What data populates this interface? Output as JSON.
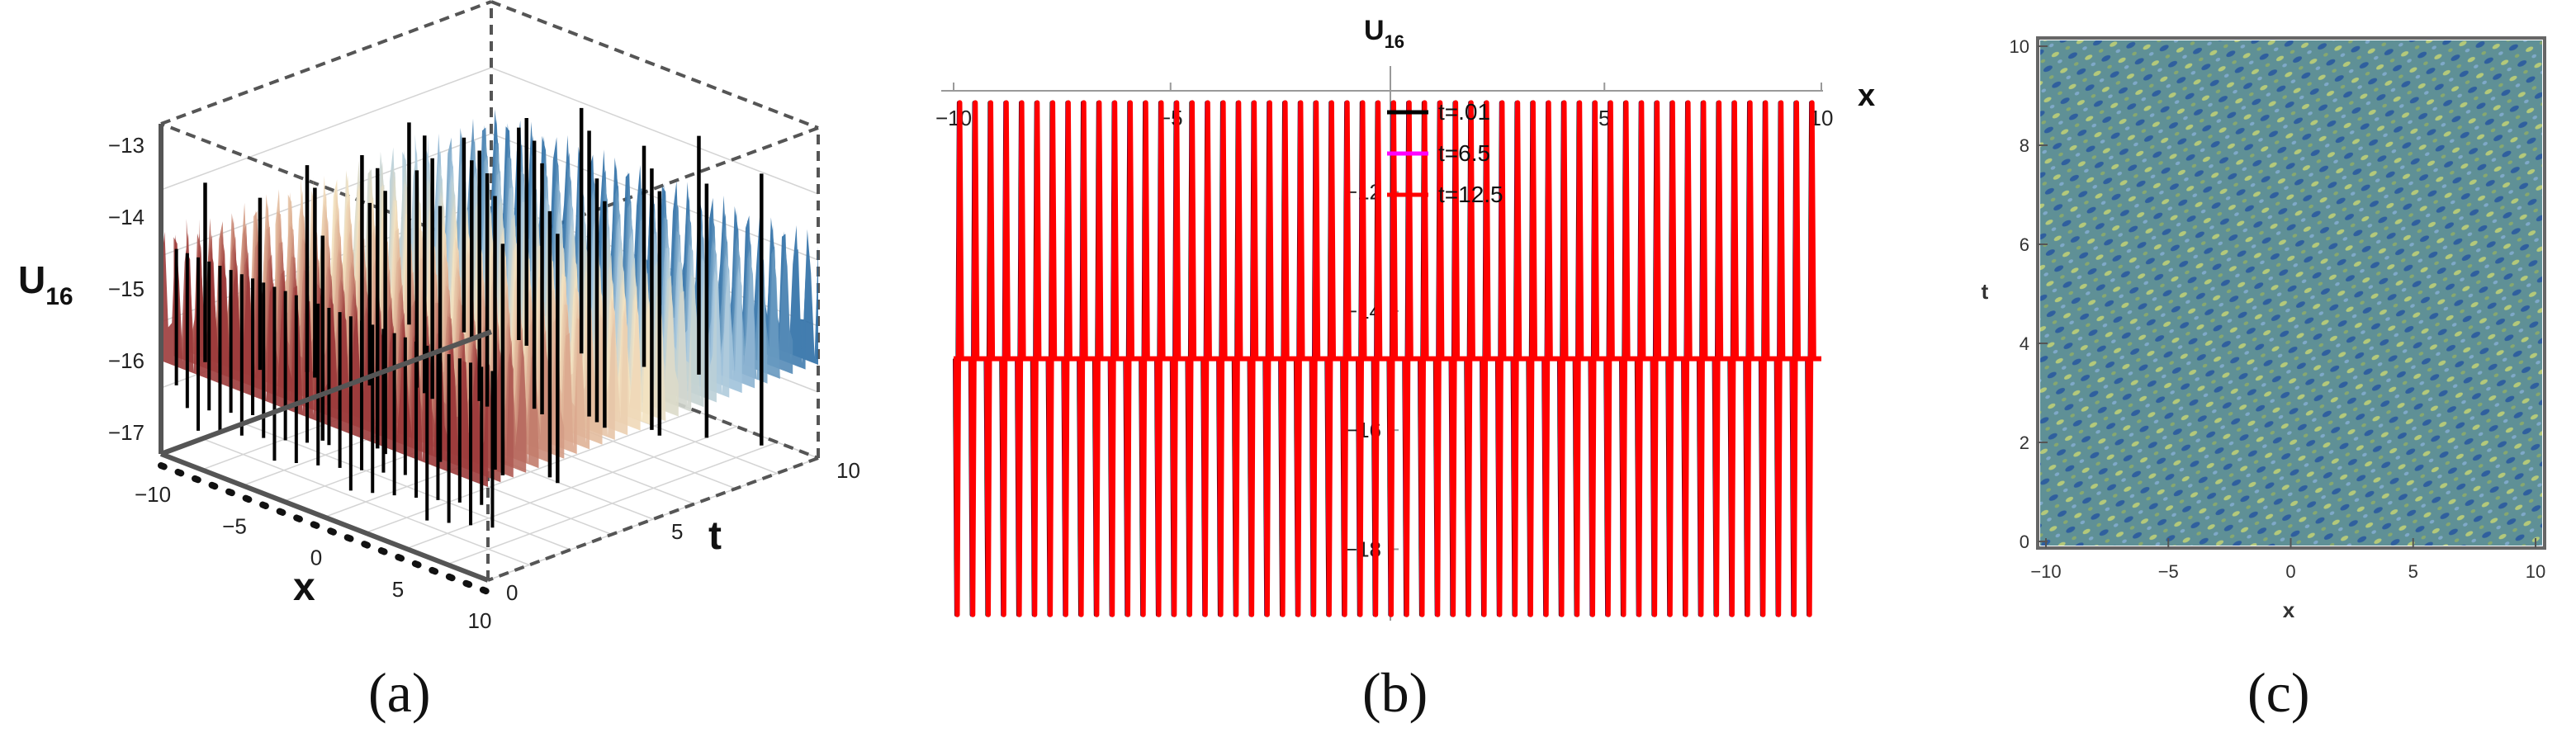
{
  "chart_data": [
    {
      "panel": "a",
      "type": "surface3d",
      "caption": "(a)",
      "z_label_main": "U",
      "z_label_sub": "16",
      "x_label": "x",
      "t_label": "t",
      "x_ticks": [
        "-10",
        "-5",
        "0",
        "5",
        "10"
      ],
      "t_ticks": [
        "0",
        "5",
        "10"
      ],
      "z_ticks": [
        "-13",
        "-14",
        "-15",
        "-16",
        "-17"
      ],
      "x_range": [
        -10,
        10
      ],
      "t_range": [
        0,
        10
      ],
      "z_range": [
        -17.3,
        -12.7
      ],
      "surface_baseline": -14.7,
      "surface_colors": [
        "#9c3b3b",
        "#d9a48b",
        "#f3e2c0",
        "#a9c9de",
        "#2f6fa6"
      ],
      "spike_color": "#000000"
    },
    {
      "panel": "b",
      "type": "line",
      "caption": "(b)",
      "title_main": "U",
      "title_sub": "16",
      "x_label": "x",
      "x_ticks": [
        "-10",
        "-5",
        "5",
        "10"
      ],
      "y_ticks": [
        "-12",
        "-14",
        "-16",
        "-18"
      ],
      "x_range": [
        -10,
        10
      ],
      "y_range": [
        -19.2,
        -10.3
      ],
      "baseline": -14.8,
      "oscillation_min": -19.1,
      "oscillation_max": -10.5,
      "oscillation_count": 56,
      "legend_position": "top-center",
      "series": [
        {
          "name": "t=.01",
          "color": "#000000"
        },
        {
          "name": "t=6.5",
          "color": "#ff00ff"
        },
        {
          "name": "t=12.5",
          "color": "#ff0000"
        }
      ]
    },
    {
      "panel": "c",
      "type": "heatmap",
      "caption": "(c)",
      "x_label": "x",
      "y_label": "t",
      "x_ticks": [
        "-10",
        "-5",
        "0",
        "5",
        "10"
      ],
      "y_ticks": [
        "0",
        "2",
        "4",
        "6",
        "8",
        "10"
      ],
      "x_range": [
        -10,
        10
      ],
      "y_range": [
        0,
        10
      ],
      "colors": {
        "base": "#5f9096",
        "dark": "#2f5f9e",
        "light": "#b4c97a"
      }
    }
  ]
}
